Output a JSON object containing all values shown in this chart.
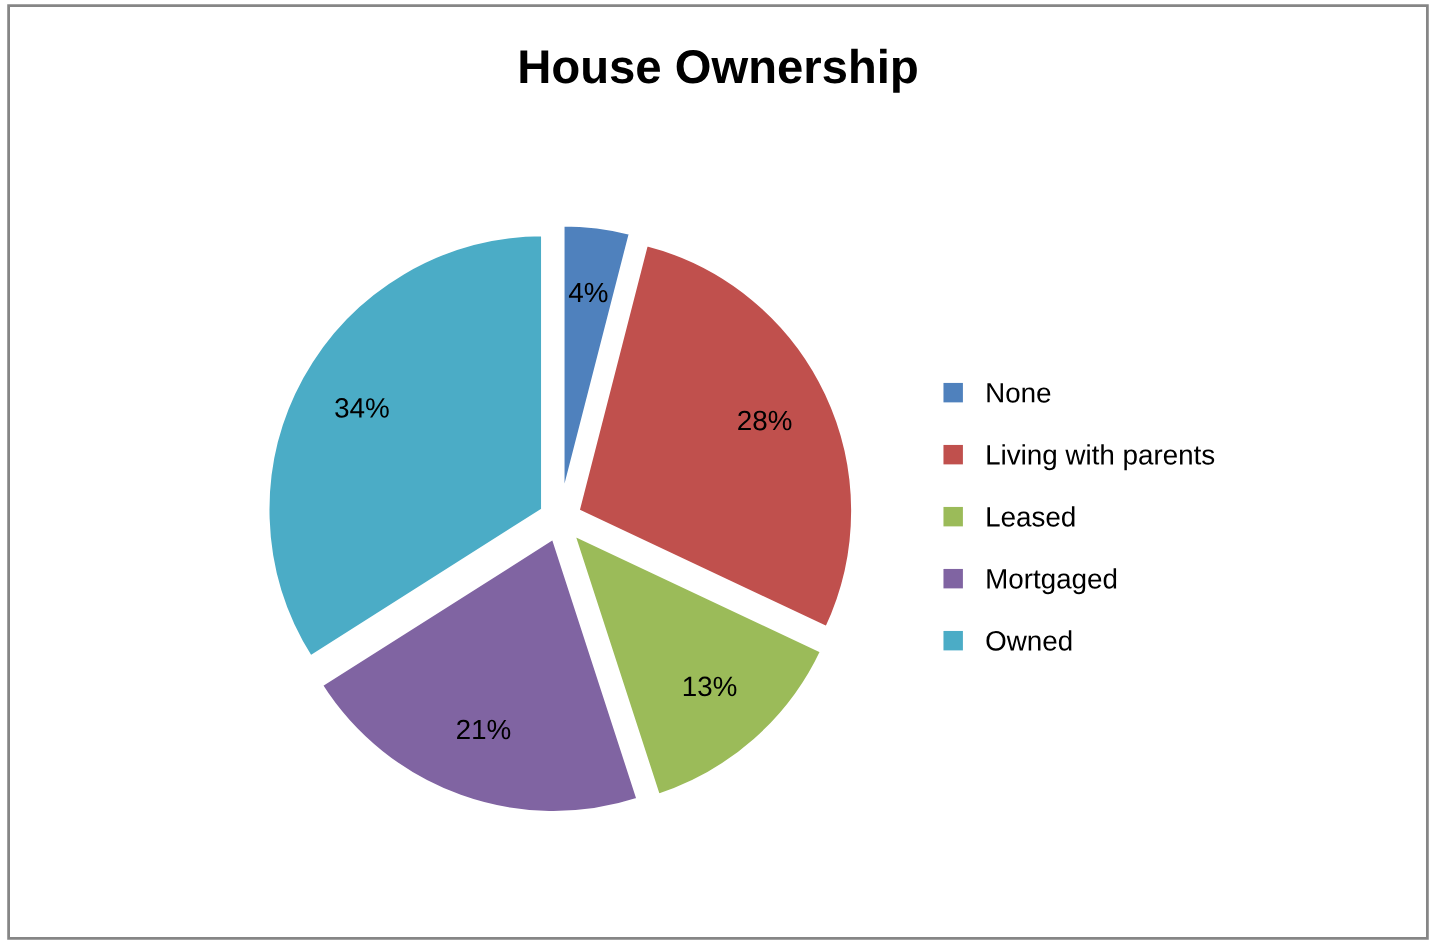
{
  "chart_data": {
    "type": "pie",
    "title": "House Ownership",
    "categories": [
      "None",
      "Living with parents",
      "Leased",
      "Mortgaged",
      "Owned"
    ],
    "values": [
      4,
      28,
      13,
      21,
      34
    ],
    "colors": [
      "#4f81bd",
      "#c0504d",
      "#9bbb59",
      "#8064a2",
      "#4bacc6"
    ],
    "value_labels": [
      "4%",
      "28%",
      "13%",
      "21%",
      "34%"
    ],
    "legend": "right"
  }
}
